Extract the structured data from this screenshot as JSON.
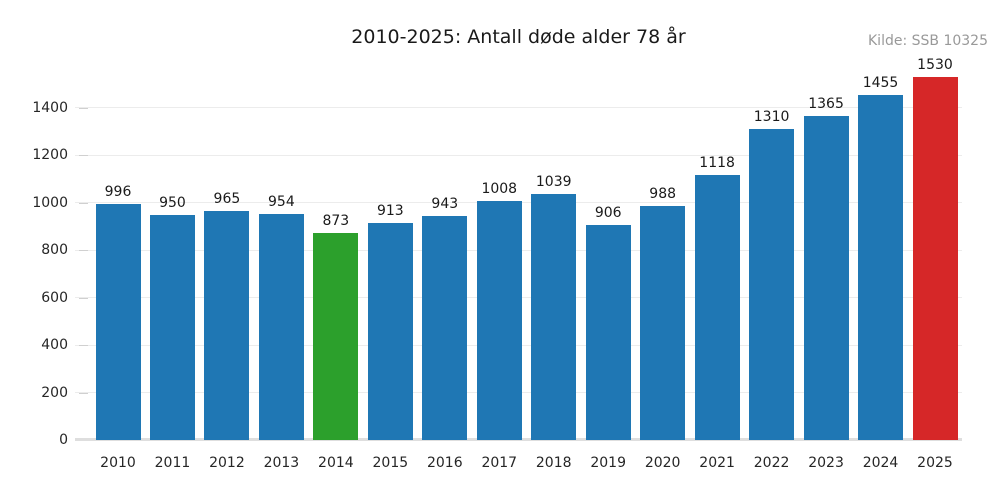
{
  "chart_data": {
    "type": "bar",
    "title": "2010-2025: Antall døde alder 78 år",
    "source": "Kilde: SSB 10325",
    "xlabel": "",
    "ylabel": "",
    "categories": [
      "2010",
      "2011",
      "2012",
      "2013",
      "2014",
      "2015",
      "2016",
      "2017",
      "2018",
      "2019",
      "2020",
      "2021",
      "2022",
      "2023",
      "2024",
      "2025"
    ],
    "values": [
      996,
      950,
      965,
      954,
      873,
      913,
      943,
      1008,
      1039,
      906,
      988,
      1118,
      1310,
      1365,
      1455,
      1530
    ],
    "bar_colors": [
      "#1f77b4",
      "#1f77b4",
      "#1f77b4",
      "#1f77b4",
      "#2ca02c",
      "#1f77b4",
      "#1f77b4",
      "#1f77b4",
      "#1f77b4",
      "#1f77b4",
      "#1f77b4",
      "#1f77b4",
      "#1f77b4",
      "#1f77b4",
      "#1f77b4",
      "#d62728"
    ],
    "value_labels_shown": true,
    "yticks": [
      0,
      200,
      400,
      600,
      800,
      1000,
      1200,
      1400
    ],
    "ylim": [
      0,
      1560
    ],
    "grid": "horizontal",
    "legend": "none",
    "colors": {
      "default_bar": "#1f77b4",
      "highlight_2014_bar": "#2ca02c",
      "highlight_2025_bar": "#d62728",
      "grid_line": "#ececec",
      "zero_line": "#dedede",
      "tick_mark": "#d0d0d0",
      "label_text": "#1a1a1a",
      "source_text": "#999999",
      "background": "#ffffff"
    }
  }
}
